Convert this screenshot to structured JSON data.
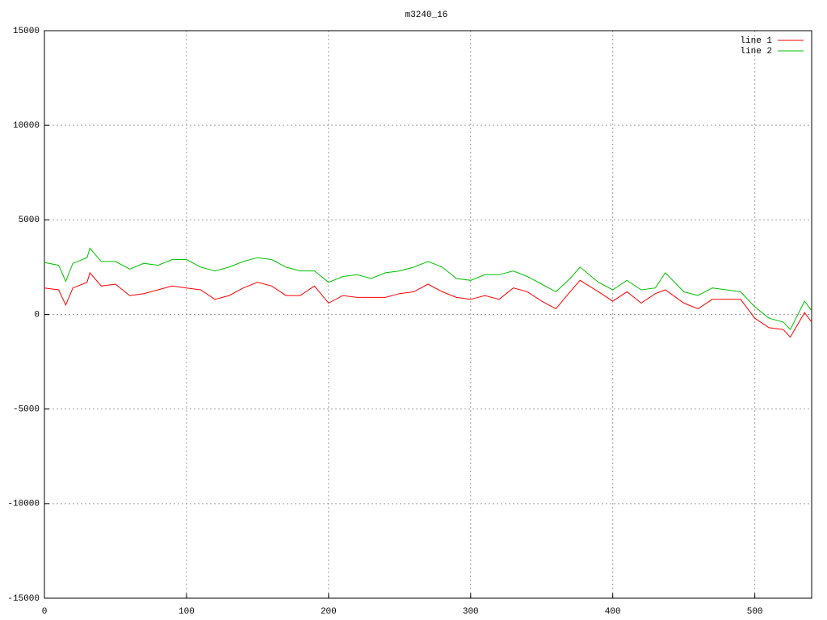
{
  "chart_data": {
    "type": "line",
    "title": "m3240_16",
    "x": [
      0,
      10,
      15,
      20,
      30,
      32,
      40,
      50,
      60,
      70,
      80,
      90,
      100,
      110,
      120,
      130,
      140,
      150,
      160,
      170,
      180,
      190,
      200,
      210,
      220,
      230,
      240,
      250,
      260,
      270,
      280,
      290,
      300,
      310,
      320,
      330,
      340,
      350,
      360,
      370,
      377,
      390,
      400,
      410,
      420,
      430,
      437,
      450,
      460,
      470,
      480,
      490,
      500,
      510,
      520,
      525,
      535,
      540
    ],
    "series": [
      {
        "name": "line 1",
        "color": "#ff0000",
        "values": [
          1400,
          1300,
          500,
          1400,
          1700,
          2200,
          1500,
          1600,
          1000,
          1100,
          1300,
          1500,
          1400,
          1300,
          800,
          1000,
          1400,
          1700,
          1500,
          1000,
          1000,
          1500,
          600,
          1000,
          900,
          900,
          900,
          1100,
          1200,
          1600,
          1200,
          900,
          800,
          1000,
          800,
          1400,
          1200,
          700,
          300,
          1200,
          1800,
          1200,
          700,
          1200,
          600,
          1100,
          1300,
          600,
          300,
          800,
          800,
          800,
          -200,
          -700,
          -800,
          -1200,
          100,
          -400
        ]
      },
      {
        "name": "line 2",
        "color": "#00c000",
        "values": [
          2750,
          2600,
          1750,
          2700,
          3000,
          3500,
          2800,
          2800,
          2400,
          2700,
          2600,
          2900,
          2900,
          2500,
          2300,
          2500,
          2800,
          3000,
          2900,
          2500,
          2300,
          2300,
          1700,
          2000,
          2100,
          1900,
          2200,
          2300,
          2500,
          2800,
          2500,
          1900,
          1800,
          2100,
          2100,
          2300,
          2000,
          1600,
          1200,
          1900,
          2500,
          1700,
          1300,
          1800,
          1300,
          1400,
          2200,
          1200,
          1000,
          1400,
          1300,
          1200,
          400,
          -200,
          -400,
          -800,
          700,
          200
        ]
      }
    ],
    "xlim": [
      0,
      540
    ],
    "xticks": [
      0,
      100,
      200,
      300,
      400,
      500
    ],
    "ylim": [
      -15000,
      15000
    ],
    "yticks": [
      -15000,
      -10000,
      -5000,
      0,
      5000,
      10000,
      15000
    ],
    "grid": true,
    "legend": "top-right"
  }
}
